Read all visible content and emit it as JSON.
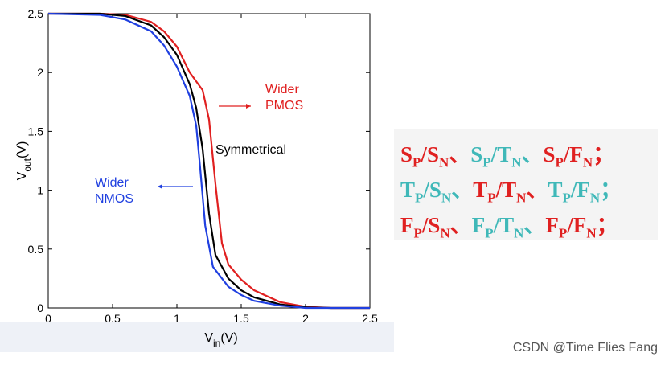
{
  "chart_data": {
    "type": "line",
    "xlabel": {
      "main": "V",
      "sub": "in",
      "rest": "(V)"
    },
    "ylabel": {
      "main": "V",
      "sub": "out",
      "rest": "(V)"
    },
    "xlim": [
      0,
      2.5
    ],
    "ylim": [
      0,
      2.5
    ],
    "xticks": [
      0,
      0.5,
      1,
      1.5,
      2,
      2.5
    ],
    "yticks": [
      0,
      0.5,
      1,
      1.5,
      2,
      2.5
    ],
    "series": [
      {
        "color": "#e02020",
        "x": [
          0,
          0.4,
          0.6,
          0.8,
          0.9,
          1.0,
          1.1,
          1.2,
          1.25,
          1.3,
          1.35,
          1.4,
          1.5,
          1.6,
          1.8,
          2.0,
          2.2,
          2.5
        ],
        "values": [
          2.5,
          2.5,
          2.49,
          2.43,
          2.35,
          2.22,
          2.0,
          1.85,
          1.6,
          1.05,
          0.55,
          0.37,
          0.24,
          0.15,
          0.05,
          0.01,
          0,
          0
        ]
      },
      {
        "color": "#000000",
        "x": [
          0,
          0.4,
          0.6,
          0.8,
          0.9,
          1.0,
          1.1,
          1.15,
          1.2,
          1.25,
          1.3,
          1.4,
          1.5,
          1.6,
          1.8,
          2.0,
          2.2,
          2.5
        ],
        "values": [
          2.5,
          2.5,
          2.48,
          2.4,
          2.3,
          2.15,
          1.9,
          1.7,
          1.35,
          0.8,
          0.45,
          0.25,
          0.15,
          0.09,
          0.03,
          0.005,
          0,
          0
        ]
      },
      {
        "color": "#2040e0",
        "x": [
          0,
          0.4,
          0.6,
          0.8,
          0.9,
          1.0,
          1.1,
          1.15,
          1.18,
          1.22,
          1.28,
          1.4,
          1.5,
          1.6,
          1.8,
          2.0,
          2.5
        ],
        "values": [
          2.5,
          2.49,
          2.45,
          2.35,
          2.23,
          2.05,
          1.8,
          1.55,
          1.2,
          0.7,
          0.35,
          0.18,
          0.11,
          0.06,
          0.02,
          0,
          0
        ]
      }
    ],
    "annotations": [
      {
        "lines": [
          "Wider",
          "PMOS"
        ],
        "color": "#e02020"
      },
      {
        "lines": [
          "Symmetrical"
        ],
        "color": "#000000"
      },
      {
        "lines": [
          "Wider",
          "NMOS"
        ],
        "color": "#2040e0"
      }
    ]
  },
  "panel": {
    "separator": "/",
    "rows": [
      [
        {
          "a": "S",
          "a_sub": "P",
          "b": "S",
          "b_sub": "N",
          "punct": "、",
          "color": "#e02020"
        },
        {
          "a": "S",
          "a_sub": "P",
          "b": "T",
          "b_sub": "N",
          "punct": "、",
          "color": "#3fb8b8"
        },
        {
          "a": "S",
          "a_sub": "P",
          "b": "F",
          "b_sub": "N",
          "punct": "；",
          "color": "#e02020"
        }
      ],
      [
        {
          "a": "T",
          "a_sub": "P",
          "b": "S",
          "b_sub": "N",
          "punct": "、",
          "color": "#3fb8b8"
        },
        {
          "a": "T",
          "a_sub": "P",
          "b": "T",
          "b_sub": "N",
          "punct": "、",
          "color": "#e02020"
        },
        {
          "a": "T",
          "a_sub": "P",
          "b": "F",
          "b_sub": "N",
          "punct": "；",
          "color": "#3fb8b8"
        }
      ],
      [
        {
          "a": "F",
          "a_sub": "P",
          "b": "S",
          "b_sub": "N",
          "punct": "、",
          "color": "#e02020"
        },
        {
          "a": "F",
          "a_sub": "P",
          "b": "T",
          "b_sub": "N",
          "punct": "、",
          "color": "#3fb8b8"
        },
        {
          "a": "F",
          "a_sub": "P",
          "b": "F",
          "b_sub": "N",
          "punct": "；",
          "color": "#e02020"
        }
      ]
    ]
  },
  "watermark": "CSDN @Time Flies Fang"
}
